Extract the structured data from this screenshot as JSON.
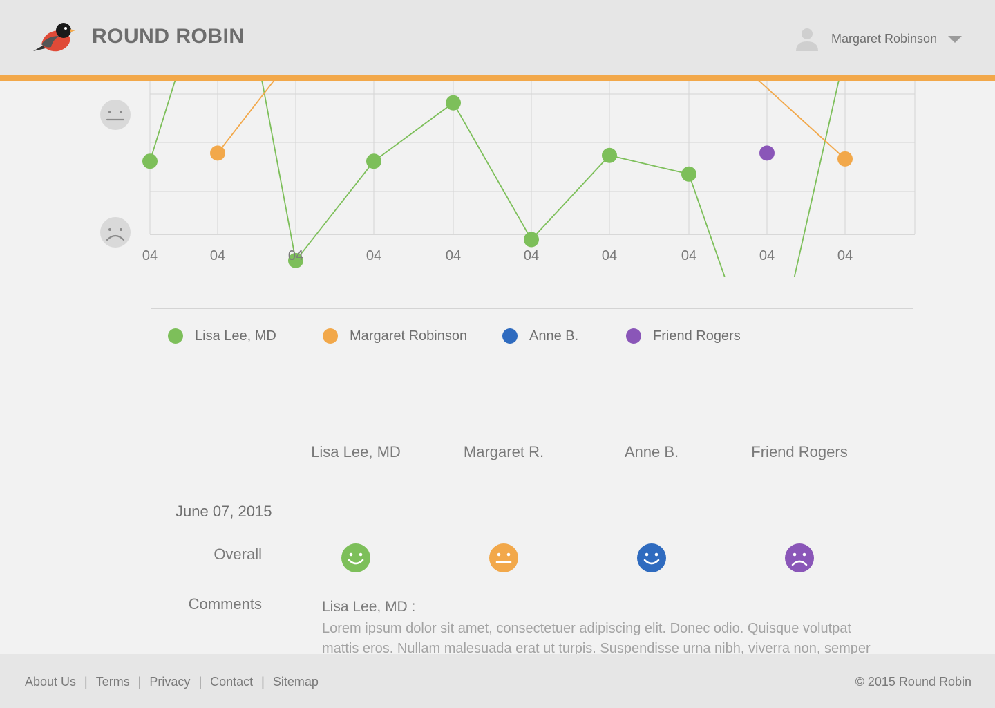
{
  "app": {
    "brand": "ROUND ROBIN"
  },
  "user": {
    "name": "Margaret Robinson"
  },
  "colors": {
    "green": "#7dbf5a",
    "orange": "#f2a84a",
    "blue": "#2f6bbf",
    "purple": "#8a56b8",
    "face_gray": "#d9d9d9"
  },
  "chart_data": {
    "type": "line",
    "x_tick_labels": [
      "04",
      "04",
      "04",
      "04",
      "04",
      "04",
      "04",
      "04",
      "04",
      "04"
    ],
    "y_levels": [
      "neutral",
      "sad"
    ],
    "grid": true,
    "series": [
      {
        "name": "Lisa Lee, MD",
        "color": "#7dbf5a",
        "points": [
          [
            0,
            0.62
          ],
          [
            0.5,
            1.55
          ],
          [
            1.5,
            1.55
          ],
          [
            2,
            -0.23
          ],
          [
            3,
            0.62
          ],
          [
            4,
            1.12
          ],
          [
            5,
            -0.05
          ],
          [
            6,
            0.67
          ],
          [
            7,
            0.51
          ],
          [
            8,
            -1.41
          ],
          [
            9,
            1.55
          ]
        ]
      },
      {
        "name": "Margaret Robinson",
        "color": "#f2a84a",
        "points": [
          [
            1,
            0.69
          ],
          [
            2,
            1.55
          ],
          [
            7.5,
            1.55
          ],
          [
            9,
            0.64
          ]
        ]
      },
      {
        "name": "Anne B.",
        "color": "#2f6bbf",
        "points": []
      },
      {
        "name": "Friend Rogers",
        "color": "#8a56b8",
        "points": [
          [
            8,
            0.69
          ]
        ]
      }
    ]
  },
  "legend": {
    "items": [
      {
        "label": "Lisa Lee, MD",
        "color": "#7dbf5a"
      },
      {
        "label": "Margaret Robinson",
        "color": "#f2a84a"
      },
      {
        "label": "Anne B.",
        "color": "#2f6bbf"
      },
      {
        "label": "Friend Rogers",
        "color": "#8a56b8"
      }
    ]
  },
  "table": {
    "columns": [
      "Lisa Lee, MD",
      "Margaret R.",
      "Anne B.",
      "Friend Rogers"
    ],
    "date": "June 07, 2015",
    "overall_label": "Overall",
    "comments_label": "Comments",
    "overall": [
      {
        "mood": "happy",
        "color": "#7dbf5a"
      },
      {
        "mood": "neutral",
        "color": "#f2a84a"
      },
      {
        "mood": "happy",
        "color": "#2f6bbf"
      },
      {
        "mood": "sad",
        "color": "#8a56b8"
      }
    ],
    "comment_author": "Lisa Lee, MD :",
    "comment_text": "Lorem ipsum dolor sit amet, consectetuer adipiscing elit. Donec odio. Quisque volutpat mattis eros. Nullam malesuada erat ut turpis. Suspendisse urna nibh, viverra non, semper suscipit."
  },
  "footer": {
    "links": [
      "About Us",
      "Terms",
      "Privacy",
      "Contact",
      "Sitemap"
    ],
    "separator": "|",
    "copyright": "© 2015 Round Robin"
  }
}
